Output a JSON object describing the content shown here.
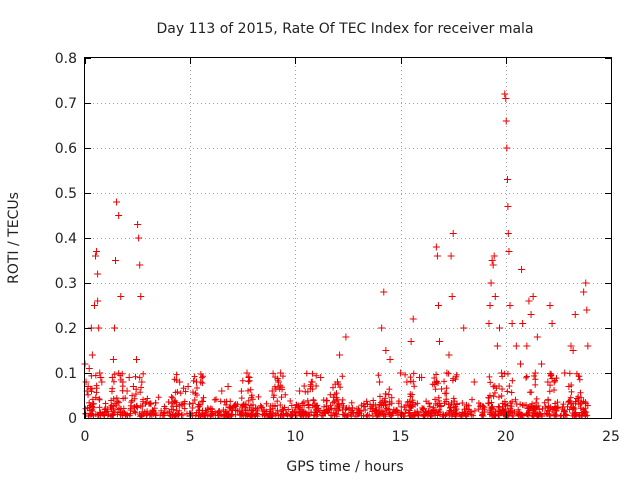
{
  "chart_data": {
    "type": "scatter",
    "title": "Day 113 of 2015, Rate Of TEC Index for receiver mala",
    "xlabel": "GPS time / hours",
    "ylabel": "ROTI / TECUs",
    "xlim": [
      0,
      25
    ],
    "ylim": [
      0,
      0.8
    ],
    "xticks": [
      0,
      5,
      10,
      15,
      20,
      25
    ],
    "yticks": [
      0,
      0.1,
      0.2,
      0.3,
      0.4,
      0.5,
      0.6,
      0.7,
      0.8
    ],
    "grid": true,
    "marker": "+",
    "color": "#ee0000",
    "series": [
      {
        "name": "ROTI",
        "x": [
          0.0,
          0.05,
          0.1,
          0.15,
          0.2,
          0.3,
          0.35,
          0.45,
          0.5,
          0.55,
          0.6,
          0.6,
          0.65,
          0.7,
          0.75,
          0.8,
          1.3,
          1.35,
          1.4,
          1.45,
          1.5,
          1.6,
          1.7,
          1.8,
          2.0,
          2.1,
          2.3,
          2.45,
          2.5,
          2.55,
          2.6,
          2.65,
          2.7,
          4.5,
          4.9,
          5.3,
          5.5,
          6.5,
          6.8,
          7.7,
          7.8,
          8.9,
          9.2,
          9.3,
          10.2,
          10.8,
          11.2,
          12.0,
          12.1,
          12.4,
          14.0,
          14.1,
          14.2,
          14.3,
          14.5,
          15.0,
          15.3,
          15.5,
          15.6,
          15.9,
          16.0,
          16.7,
          16.75,
          16.8,
          16.85,
          17.2,
          17.3,
          17.4,
          17.45,
          17.5,
          18.0,
          18.5,
          19.2,
          19.25,
          19.3,
          19.35,
          19.4,
          19.45,
          19.5,
          19.6,
          19.7,
          19.8,
          19.95,
          20.0,
          20.02,
          20.05,
          20.08,
          20.1,
          20.12,
          20.15,
          20.2,
          20.3,
          20.5,
          20.7,
          20.75,
          20.8,
          21.0,
          21.1,
          21.2,
          21.3,
          21.4,
          21.5,
          21.7,
          22.0,
          22.1,
          22.2,
          22.3,
          22.8,
          23.0,
          23.1,
          23.2,
          23.3,
          23.7,
          23.8,
          23.85,
          23.9
        ],
        "y": [
          0.12,
          0.08,
          0.06,
          0.07,
          0.11,
          0.2,
          0.14,
          0.25,
          0.36,
          0.37,
          0.32,
          0.26,
          0.2,
          0.1,
          0.09,
          0.08,
          0.09,
          0.13,
          0.2,
          0.35,
          0.48,
          0.45,
          0.27,
          0.08,
          0.06,
          0.09,
          0.07,
          0.13,
          0.43,
          0.4,
          0.34,
          0.27,
          0.08,
          0.08,
          0.07,
          0.08,
          0.08,
          0.06,
          0.07,
          0.1,
          0.09,
          0.06,
          0.08,
          0.1,
          0.06,
          0.08,
          0.09,
          0.08,
          0.14,
          0.18,
          0.08,
          0.2,
          0.28,
          0.15,
          0.13,
          0.1,
          0.08,
          0.17,
          0.22,
          0.09,
          0.09,
          0.38,
          0.36,
          0.25,
          0.17,
          0.1,
          0.14,
          0.36,
          0.27,
          0.41,
          0.2,
          0.08,
          0.21,
          0.25,
          0.3,
          0.35,
          0.34,
          0.36,
          0.27,
          0.16,
          0.2,
          0.1,
          0.72,
          0.71,
          0.66,
          0.6,
          0.53,
          0.47,
          0.41,
          0.37,
          0.25,
          0.21,
          0.16,
          0.12,
          0.33,
          0.21,
          0.16,
          0.26,
          0.23,
          0.27,
          0.1,
          0.18,
          0.12,
          0.08,
          0.25,
          0.21,
          0.08,
          0.1,
          0.07,
          0.16,
          0.15,
          0.23,
          0.28,
          0.3,
          0.24,
          0.16
        ]
      }
    ]
  }
}
